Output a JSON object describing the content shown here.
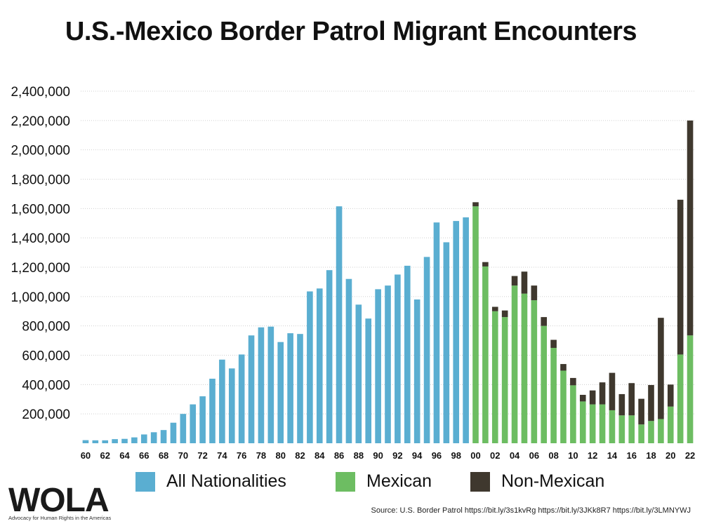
{
  "title": "U.S.-Mexico Border Patrol Migrant Encounters",
  "legend": [
    {
      "label": "All Nationalities",
      "color": "#5aaed1"
    },
    {
      "label": "Mexican",
      "color": "#6dbd62"
    },
    {
      "label": "Non-Mexican",
      "color": "#3f382e"
    }
  ],
  "logo": {
    "text": "WOLA",
    "tagline": "Advocacy for Human Rights in the Americas"
  },
  "source": "Source: U.S. Border Patrol https://bit.ly/3s1kvRg  https://bit.ly/3JKk8R7 https://bit.ly/3LMNYWJ",
  "chart_data": {
    "type": "bar",
    "ylim": [
      0,
      2400000
    ],
    "yticks": [
      "200,000",
      "400,000",
      "600,000",
      "800,000",
      "1,000,000",
      "1,200,000",
      "1,400,000",
      "1,600,000",
      "1,800,000",
      "2,000,000",
      "2,200,000",
      "2,400,000"
    ],
    "grid": true,
    "legend_position": "bottom",
    "categories": [
      "60",
      "61",
      "62",
      "63",
      "64",
      "65",
      "66",
      "67",
      "68",
      "69",
      "70",
      "71",
      "72",
      "73",
      "74",
      "75",
      "76",
      "77",
      "78",
      "79",
      "80",
      "81",
      "82",
      "83",
      "84",
      "85",
      "86",
      "87",
      "88",
      "89",
      "90",
      "91",
      "92",
      "93",
      "94",
      "95",
      "96",
      "97",
      "98",
      "99",
      "00",
      "01",
      "02",
      "03",
      "04",
      "05",
      "06",
      "07",
      "08",
      "09",
      "10",
      "11",
      "12",
      "13",
      "14",
      "15",
      "16",
      "17",
      "18",
      "19",
      "20",
      "21",
      "22"
    ],
    "xtick_labels": [
      "60",
      "62",
      "64",
      "66",
      "68",
      "70",
      "72",
      "74",
      "76",
      "78",
      "80",
      "82",
      "84",
      "86",
      "88",
      "90",
      "92",
      "94",
      "96",
      "98",
      "00",
      "02",
      "04",
      "06",
      "08",
      "10",
      "12",
      "14",
      "16",
      "18",
      "20",
      "22"
    ],
    "series": [
      {
        "name": "All Nationalities",
        "color": "#5aaed1",
        "values": [
          21000,
          20000,
          20000,
          28000,
          30000,
          40000,
          60000,
          75000,
          90000,
          140000,
          200000,
          265000,
          320000,
          440000,
          570000,
          510000,
          605000,
          735000,
          790000,
          795000,
          690000,
          750000,
          745000,
          1035000,
          1055000,
          1180000,
          1615000,
          1120000,
          945000,
          850000,
          1050000,
          1075000,
          1150000,
          1210000,
          980000,
          1270000,
          1505000,
          1370000,
          1515000,
          1540000,
          0,
          0,
          0,
          0,
          0,
          0,
          0,
          0,
          0,
          0,
          0,
          0,
          0,
          0,
          0,
          0,
          0,
          0,
          0,
          0,
          0,
          0,
          0
        ]
      },
      {
        "name": "Mexican",
        "color": "#6dbd62",
        "values": [
          0,
          0,
          0,
          0,
          0,
          0,
          0,
          0,
          0,
          0,
          0,
          0,
          0,
          0,
          0,
          0,
          0,
          0,
          0,
          0,
          0,
          0,
          0,
          0,
          0,
          0,
          0,
          0,
          0,
          0,
          0,
          0,
          0,
          0,
          0,
          0,
          0,
          0,
          0,
          0,
          1615000,
          1205000,
          900000,
          860000,
          1075000,
          1020000,
          975000,
          800000,
          650000,
          495000,
          395000,
          285000,
          265000,
          265000,
          225000,
          190000,
          190000,
          128000,
          152000,
          165000,
          250000,
          605000,
          735000
        ]
      },
      {
        "name": "Non-Mexican",
        "color": "#3f382e",
        "values": [
          0,
          0,
          0,
          0,
          0,
          0,
          0,
          0,
          0,
          0,
          0,
          0,
          0,
          0,
          0,
          0,
          0,
          0,
          0,
          0,
          0,
          0,
          0,
          0,
          0,
          0,
          0,
          0,
          0,
          0,
          0,
          0,
          0,
          0,
          0,
          0,
          0,
          0,
          0,
          0,
          28000,
          30000,
          30000,
          45000,
          65000,
          150000,
          100000,
          60000,
          55000,
          45000,
          50000,
          45000,
          95000,
          150000,
          255000,
          145000,
          220000,
          175000,
          245000,
          690000,
          150000,
          1055000,
          1465000
        ]
      }
    ]
  }
}
